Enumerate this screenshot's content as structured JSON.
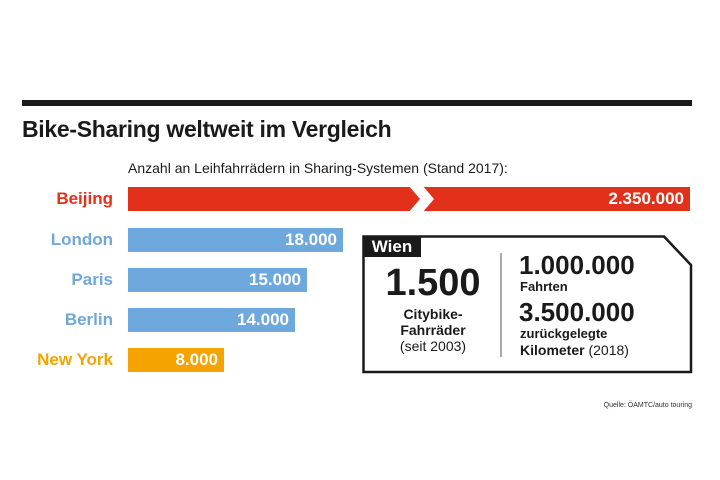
{
  "chart_data": {
    "type": "bar",
    "title": "Bike-Sharing weltweit im Vergleich",
    "subtitle": "Anzahl an Leihfahrrädern in Sharing-Systemen (Stand 2017):",
    "categories": [
      "Beijing",
      "London",
      "Paris",
      "Berlin",
      "New York"
    ],
    "values": [
      2350000,
      18000,
      15000,
      14000,
      8000
    ],
    "value_labels": [
      "2.350.000",
      "18.000",
      "15.000",
      "14.000",
      "8.000"
    ],
    "colors": [
      "#e3301b",
      "#6fa8dc",
      "#6fa8dc",
      "#6fa8dc",
      "#f5a300"
    ],
    "axis_break": "Beijing bar truncated",
    "source": "Quelle: ÖAMTC/auto touring"
  },
  "wien": {
    "label": "Wien",
    "bikes_value": "1.500",
    "bikes_text1": "Citybike-",
    "bikes_text2": "Fahrräder",
    "bikes_text3": "(seit 2003)",
    "rides_value": "1.000.000",
    "rides_text": "Fahrten",
    "km_value": "3.500.000",
    "km_text1": "zurückgelegte",
    "km_text2": "Kilometer",
    "km_text3": "(2018)"
  }
}
